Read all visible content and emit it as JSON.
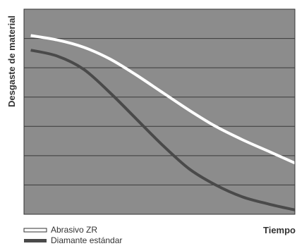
{
  "chart_data": {
    "type": "line",
    "title": "",
    "xlabel": "Tiempo",
    "ylabel": "Desgaste de material",
    "x_ticks_labeled": false,
    "y_ticks_labeled": false,
    "grid": "horizontal",
    "grid_lines": 7,
    "legend_position": "bottom-left",
    "ylim": [
      0,
      7
    ],
    "xlim": [
      0,
      1
    ],
    "background": "#8c8c8c",
    "series": [
      {
        "name": "Abrasivo ZR",
        "color": "#ffffff",
        "legend_style": "outlined",
        "x": [
          0,
          0.1,
          0.2,
          0.3,
          0.4,
          0.5,
          0.6,
          0.7,
          0.8,
          0.9,
          1.0
        ],
        "y": [
          6.1,
          5.95,
          5.7,
          5.3,
          4.75,
          4.15,
          3.55,
          3.0,
          2.55,
          2.15,
          1.75
        ]
      },
      {
        "name": "Diamante estándar",
        "color": "#4a4a4a",
        "legend_style": "solid",
        "x": [
          0,
          0.1,
          0.2,
          0.3,
          0.4,
          0.5,
          0.6,
          0.7,
          0.8,
          0.9,
          1.0
        ],
        "y": [
          5.6,
          5.4,
          4.95,
          4.15,
          3.25,
          2.35,
          1.55,
          1.0,
          0.6,
          0.35,
          0.15
        ]
      }
    ]
  }
}
